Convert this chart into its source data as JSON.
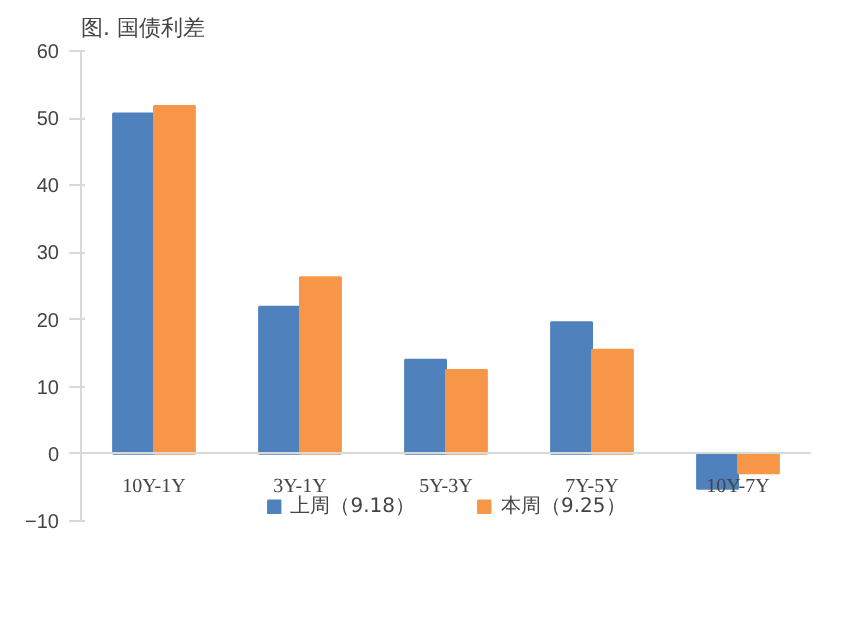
{
  "chart_data": {
    "type": "bar",
    "title": "图. 国债利差",
    "categories": [
      "10Y-1Y",
      "3Y-1Y",
      "5Y-3Y",
      "7Y-5Y",
      "10Y-7Y"
    ],
    "series": [
      {
        "name": "上周（9.18）",
        "color": "#4f81bd",
        "values": [
          50.7,
          21.9,
          14.0,
          19.6,
          -5.2
        ]
      },
      {
        "name": "本周（9.25）",
        "color": "#f79646",
        "values": [
          51.8,
          26.3,
          12.5,
          15.5,
          -2.9
        ]
      }
    ],
    "ylim": [
      -10,
      60
    ],
    "yticks": [
      -10,
      0,
      10,
      20,
      30,
      40,
      50,
      60
    ],
    "grid": false,
    "legend": "bottom"
  }
}
